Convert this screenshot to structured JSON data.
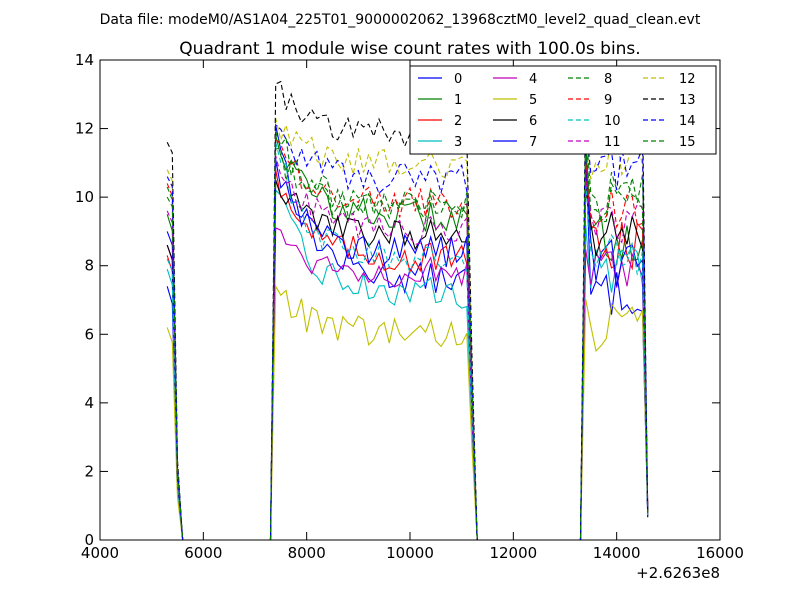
{
  "suptitle": "Data file: modeM0/AS1A04_225T01_9000002062_13968cztM0_level2_quad_clean.evt",
  "chart_data": {
    "type": "line",
    "title": "Quadrant 1 module wise count rates with 100.0s bins.",
    "xlabel": "",
    "ylabel": "",
    "x_offset_label": "+2.6263e8",
    "xlim": [
      4000,
      16000
    ],
    "ylim": [
      0,
      14
    ],
    "x_ticks": [
      4000,
      6000,
      8000,
      10000,
      12000,
      14000,
      16000
    ],
    "y_ticks": [
      0,
      2,
      4,
      6,
      8,
      10,
      12,
      14
    ],
    "x_tick_labels": [
      "4000",
      "6000",
      "8000",
      "10000",
      "12000",
      "14000",
      "16000"
    ],
    "y_tick_labels": [
      "0",
      "2",
      "4",
      "6",
      "8",
      "10",
      "12",
      "14"
    ],
    "grid": false,
    "legend_position": "top-right",
    "legend_columns": 4,
    "segments": [
      {
        "x_start": 5300,
        "x_step": 100,
        "n": 4
      },
      {
        "x_start": 5600,
        "x_step": 100,
        "n": 18
      },
      {
        "x_start": 7300,
        "x_step": 100,
        "n": 41
      },
      {
        "x_start": 11400,
        "x_step": 100,
        "n": 19
      },
      {
        "x_start": 13300,
        "x_step": 100,
        "n": 14
      }
    ],
    "series": [
      {
        "name": "0",
        "color": "#0000ff",
        "dash": "solid",
        "first": 7.4,
        "plateau1": 7.6,
        "plateau2": 7.2,
        "peak": 12.1
      },
      {
        "name": "1",
        "color": "#008000",
        "dash": "solid",
        "first": 9.5,
        "plateau1": 9.4,
        "plateau2": 8.8,
        "peak": 11.8
      },
      {
        "name": "2",
        "color": "#ff0000",
        "dash": "solid",
        "first": 8.3,
        "plateau1": 8.2,
        "plateau2": 8.6,
        "peak": 10.8
      },
      {
        "name": "3",
        "color": "#00bfbf",
        "dash": "solid",
        "first": 7.9,
        "plateau1": 7.2,
        "plateau2": 7.9,
        "peak": 10.2
      },
      {
        "name": "4",
        "color": "#bf00bf",
        "dash": "solid",
        "first": 8.6,
        "plateau1": 7.8,
        "plateau2": 7.7,
        "peak": 9.1
      },
      {
        "name": "5",
        "color": "#bfbf00",
        "dash": "solid",
        "first": 6.2,
        "plateau1": 6.0,
        "plateau2": 6.2,
        "peak": 7.4
      },
      {
        "name": "6",
        "color": "#000000",
        "dash": "solid",
        "first": 8.6,
        "plateau1": 8.9,
        "plateau2": 8.9,
        "peak": 10.5
      },
      {
        "name": "7",
        "color": "#0000ff",
        "dash": "solid",
        "first": 9.0,
        "plateau1": 8.4,
        "plateau2": 8.1,
        "peak": 11.1
      },
      {
        "name": "8",
        "color": "#008000",
        "dash": "dashed",
        "first": 10.3,
        "plateau1": 9.6,
        "plateau2": 10.1,
        "peak": 11.4
      },
      {
        "name": "9",
        "color": "#ff0000",
        "dash": "dashed",
        "first": 10.4,
        "plateau1": 9.8,
        "plateau2": 9.6,
        "peak": 11.7
      },
      {
        "name": "10",
        "color": "#00bfbf",
        "dash": "dashed",
        "first": 8.2,
        "plateau1": 8.1,
        "plateau2": 8.3,
        "peak": 11.6
      },
      {
        "name": "11",
        "color": "#bf00bf",
        "dash": "dashed",
        "first": 9.6,
        "plateau1": 9.0,
        "plateau2": 9.1,
        "peak": 11.2
      },
      {
        "name": "12",
        "color": "#bfbf00",
        "dash": "dashed",
        "first": 10.8,
        "plateau1": 10.9,
        "plateau2": 11.2,
        "peak": 12.3
      },
      {
        "name": "13",
        "color": "#000000",
        "dash": "dashed",
        "first": 11.6,
        "plateau1": 11.8,
        "plateau2": 12.4,
        "peak": 13.3
      },
      {
        "name": "14",
        "color": "#0000ff",
        "dash": "dashed",
        "first": 10.6,
        "plateau1": 10.5,
        "plateau2": 10.8,
        "peak": 12.1
      },
      {
        "name": "15",
        "color": "#008000",
        "dash": "dashed",
        "first": 10.0,
        "plateau1": 9.8,
        "plateau2": 9.9,
        "peak": 11.9
      }
    ]
  }
}
